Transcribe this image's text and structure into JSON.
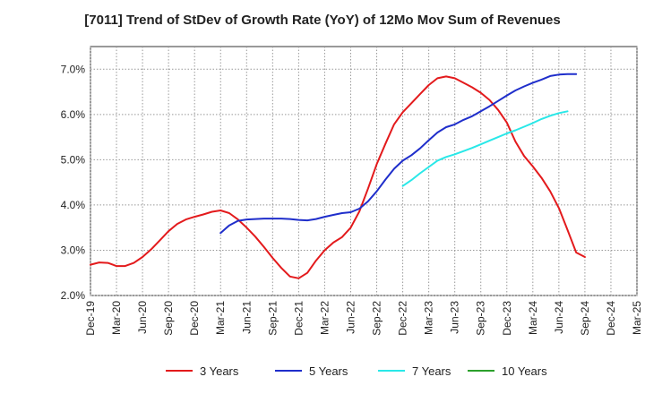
{
  "chart_data": {
    "type": "line",
    "title": "[7011]  Trend of StDev of Growth Rate (YoY) of 12Mo Mov Sum of Revenues",
    "xlabel": "",
    "ylabel": "",
    "ylim": [
      2.0,
      7.5
    ],
    "yticks": [
      "2.0%",
      "3.0%",
      "4.0%",
      "5.0%",
      "6.0%",
      "7.0%"
    ],
    "yticks_values": [
      2.0,
      3.0,
      4.0,
      5.0,
      6.0,
      7.0
    ],
    "xticks": [
      "Dec-19",
      "Mar-20",
      "Jun-20",
      "Sep-20",
      "Dec-20",
      "Mar-21",
      "Jun-21",
      "Sep-21",
      "Dec-21",
      "Mar-22",
      "Jun-22",
      "Sep-22",
      "Dec-22",
      "Mar-23",
      "Jun-23",
      "Sep-23",
      "Dec-23",
      "Mar-24",
      "Jun-24",
      "Sep-24",
      "Dec-24",
      "Mar-25"
    ],
    "x_start": "Dec-19",
    "grid": true,
    "legend_position": "bottom",
    "series": [
      {
        "name": "3 Years",
        "color": "#e31a1c",
        "start_index": 0,
        "values": [
          2.68,
          2.73,
          2.72,
          2.65,
          2.65,
          2.72,
          2.85,
          3.02,
          3.22,
          3.42,
          3.58,
          3.68,
          3.74,
          3.79,
          3.85,
          3.88,
          3.82,
          3.68,
          3.5,
          3.3,
          3.07,
          2.83,
          2.61,
          2.42,
          2.38,
          2.5,
          2.77,
          3.0,
          3.17,
          3.29,
          3.5,
          3.86,
          4.36,
          4.9,
          5.35,
          5.78,
          6.05,
          6.25,
          6.45,
          6.65,
          6.8,
          6.84,
          6.8,
          6.7,
          6.6,
          6.48,
          6.32,
          6.1,
          5.82,
          5.4,
          5.08,
          4.85,
          4.6,
          4.3,
          3.93,
          3.45,
          2.95,
          2.85
        ]
      },
      {
        "name": "5 Years",
        "color": "#1f2ecb",
        "start_index": 15,
        "values": [
          3.38,
          3.55,
          3.65,
          3.68,
          3.69,
          3.7,
          3.7,
          3.7,
          3.69,
          3.67,
          3.66,
          3.69,
          3.74,
          3.78,
          3.82,
          3.84,
          3.92,
          4.08,
          4.3,
          4.56,
          4.8,
          4.98,
          5.1,
          5.25,
          5.43,
          5.6,
          5.72,
          5.78,
          5.88,
          5.96,
          6.07,
          6.18,
          6.3,
          6.42,
          6.53,
          6.62,
          6.7,
          6.77,
          6.85,
          6.88,
          6.89,
          6.89
        ]
      },
      {
        "name": "7 Years",
        "color": "#29e8e8",
        "start_index": 36,
        "values": [
          4.42,
          4.55,
          4.7,
          4.84,
          4.98,
          5.06,
          5.12,
          5.19,
          5.26,
          5.34,
          5.42,
          5.5,
          5.58,
          5.65,
          5.73,
          5.81,
          5.9,
          5.97,
          6.03,
          6.07
        ]
      },
      {
        "name": "10 Years",
        "color": "#2ca02c",
        "start_index": 0,
        "values": []
      }
    ]
  }
}
